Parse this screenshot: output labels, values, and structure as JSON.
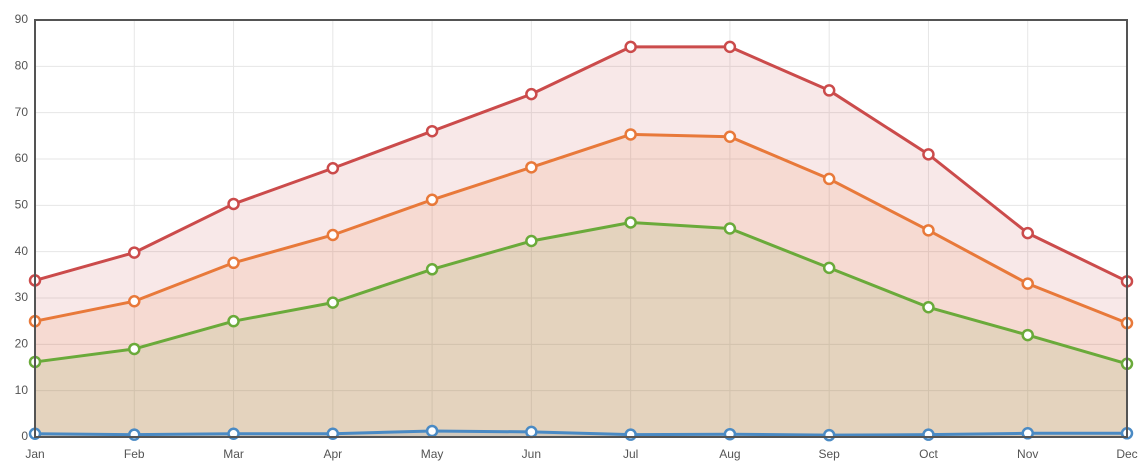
{
  "chart_data": {
    "type": "line",
    "categories": [
      "Jan",
      "Feb",
      "Mar",
      "Apr",
      "May",
      "Jun",
      "Jul",
      "Aug",
      "Sep",
      "Oct",
      "Nov",
      "Dec"
    ],
    "series": [
      {
        "color": "#cb4b4b",
        "values": [
          33.8,
          39.8,
          50.3,
          58,
          66,
          74,
          84.2,
          84.2,
          74.8,
          61,
          44,
          33.6
        ]
      },
      {
        "color": "#e8793a",
        "values": [
          25,
          29.3,
          37.6,
          43.6,
          51.2,
          58.2,
          65.3,
          64.8,
          55.7,
          44.6,
          33.1,
          24.6
        ]
      },
      {
        "color": "#6aaa3a",
        "values": [
          16.2,
          19,
          25,
          29,
          36.2,
          42.3,
          46.3,
          45,
          36.5,
          28,
          22,
          15.8
        ]
      },
      {
        "color": "#4a8ac4",
        "values": [
          0.7,
          0.5,
          0.7,
          0.7,
          1.3,
          1.1,
          0.5,
          0.6,
          0.4,
          0.5,
          0.8,
          0.8
        ]
      }
    ],
    "ylim": [
      0,
      90
    ],
    "yticks": [
      0,
      10,
      20,
      30,
      40,
      50,
      60,
      70,
      80,
      90
    ],
    "grid": true,
    "area": true
  }
}
